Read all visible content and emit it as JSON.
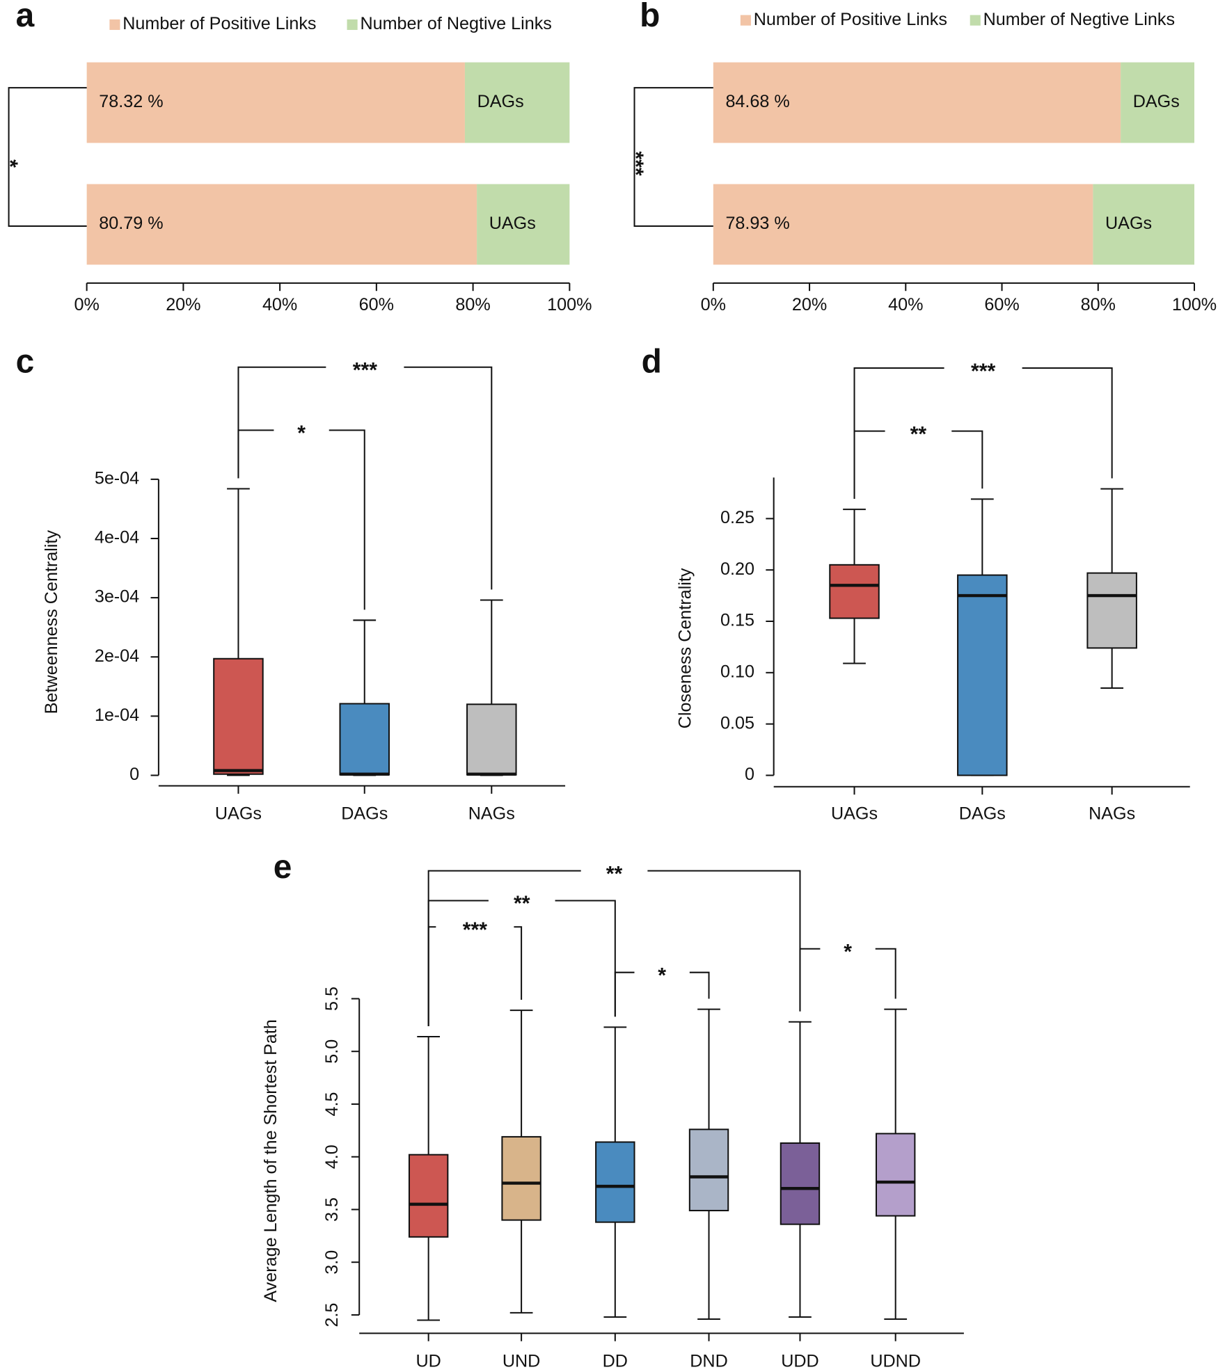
{
  "chart_data": [
    {
      "type": "stacked_hbar",
      "panel": "a",
      "categories": [
        "DAGs",
        "UAGs"
      ],
      "series": [
        {
          "name": "Number of Positive Links",
          "color": "#f2c4a6",
          "values": [
            78.32,
            80.79
          ],
          "value_labels": [
            "78.32 %",
            "80.79 %"
          ]
        },
        {
          "name": "Number of Negtive Links",
          "color": "#c1dcab",
          "values": [
            21.68,
            19.21
          ]
        }
      ],
      "xlim": [
        0,
        100
      ],
      "xticks": [
        {
          "value": 0,
          "label": "0%"
        },
        {
          "value": 20,
          "label": "20%"
        },
        {
          "value": 40,
          "label": "40%"
        },
        {
          "value": 60,
          "label": "60%"
        },
        {
          "value": 80,
          "label": "80%"
        },
        {
          "value": 100,
          "label": "100%"
        }
      ],
      "significance": "*"
    },
    {
      "type": "stacked_hbar",
      "panel": "b",
      "categories": [
        "DAGs",
        "UAGs"
      ],
      "series": [
        {
          "name": "Number of Positive Links",
          "color": "#f2c4a6",
          "values": [
            84.68,
            78.93
          ],
          "value_labels": [
            "84.68 %",
            "78.93 %"
          ]
        },
        {
          "name": "Number of Negtive Links",
          "color": "#c1dcab",
          "values": [
            15.32,
            21.07
          ]
        }
      ],
      "xlim": [
        0,
        100
      ],
      "xticks": [
        {
          "value": 0,
          "label": "0%"
        },
        {
          "value": 20,
          "label": "20%"
        },
        {
          "value": 40,
          "label": "40%"
        },
        {
          "value": 60,
          "label": "60%"
        },
        {
          "value": 80,
          "label": "80%"
        },
        {
          "value": 100,
          "label": "100%"
        }
      ],
      "significance": "***"
    },
    {
      "type": "box",
      "panel": "c",
      "ylabel": "Betweenness Centrality",
      "categories": [
        "UAGs",
        "DAGs",
        "NAGs"
      ],
      "colors": [
        "#cd5752",
        "#4a8bbf",
        "#bebebe"
      ],
      "boxes": [
        {
          "min": 0,
          "q1": 2e-06,
          "median": 8e-06,
          "q3": 0.000197,
          "max": 0.000484
        },
        {
          "min": 0,
          "q1": 1e-06,
          "median": 2e-06,
          "q3": 0.000121,
          "max": 0.000262
        },
        {
          "min": 0,
          "q1": 1e-06,
          "median": 2e-06,
          "q3": 0.00012,
          "max": 0.000296
        }
      ],
      "ylim": [
        0,
        0.0005
      ],
      "yticks": [
        0,
        {
          "value": 0.0001,
          "label": "1e-04"
        },
        {
          "value": 0.0002,
          "label": "2e-04"
        },
        {
          "value": 0.0003,
          "label": "3e-04"
        },
        {
          "value": 0.0004,
          "label": "4e-04"
        },
        {
          "value": 0.0005,
          "label": "5e-04"
        }
      ],
      "comparisons": [
        {
          "groups": [
            "UAGs",
            "NAGs"
          ],
          "label": "***"
        },
        {
          "groups": [
            "UAGs",
            "DAGs"
          ],
          "label": "*"
        }
      ]
    },
    {
      "type": "box",
      "panel": "d",
      "ylabel": "Closeness Centrality",
      "categories": [
        "UAGs",
        "DAGs",
        "NAGs"
      ],
      "colors": [
        "#cd5752",
        "#4a8bbf",
        "#bebebe"
      ],
      "boxes": [
        {
          "min": 0.109,
          "q1": 0.153,
          "median": 0.185,
          "q3": 0.205,
          "max": 0.259
        },
        {
          "min": 0,
          "q1": 0,
          "median": 0.175,
          "q3": 0.195,
          "max": 0.269
        },
        {
          "min": 0.085,
          "q1": 0.124,
          "median": 0.175,
          "q3": 0.197,
          "max": 0.279
        }
      ],
      "ylim": [
        0,
        0.29
      ],
      "yticks": [
        0,
        0.05,
        {
          "value": 0.1,
          "label": "0.10"
        },
        0.15,
        {
          "value": 0.2,
          "label": "0.20"
        },
        0.25
      ],
      "comparisons": [
        {
          "groups": [
            "UAGs",
            "NAGs"
          ],
          "label": "***"
        },
        {
          "groups": [
            "UAGs",
            "DAGs"
          ],
          "label": "**"
        }
      ]
    },
    {
      "type": "box",
      "panel": "e",
      "ylabel": "Average Length of the Shortest Path",
      "categories": [
        "UD",
        "UND",
        "DD",
        "DND",
        "UDD",
        "UDND"
      ],
      "colors": [
        "#cd5752",
        "#d8b48a",
        "#4a8bbf",
        "#aab5c7",
        "#7b6098",
        "#b49fcb"
      ],
      "boxes": [
        {
          "min": 2.45,
          "q1": 3.24,
          "median": 3.55,
          "q3": 4.02,
          "max": 5.14
        },
        {
          "min": 2.52,
          "q1": 3.4,
          "median": 3.75,
          "q3": 4.19,
          "max": 5.39
        },
        {
          "min": 2.48,
          "q1": 3.38,
          "median": 3.72,
          "q3": 4.14,
          "max": 5.23
        },
        {
          "min": 2.46,
          "q1": 3.49,
          "median": 3.81,
          "q3": 4.26,
          "max": 5.4
        },
        {
          "min": 2.48,
          "q1": 3.36,
          "median": 3.7,
          "q3": 4.13,
          "max": 5.28
        },
        {
          "min": 2.46,
          "q1": 3.44,
          "median": 3.76,
          "q3": 4.22,
          "max": 5.4
        }
      ],
      "ylim": [
        2.5,
        5.5
      ],
      "yticks": [
        2.5,
        {
          "value": 3,
          "label": "3.0"
        },
        3.5,
        {
          "value": 4,
          "label": "4.0"
        },
        4.5,
        {
          "value": 5,
          "label": "5.0"
        },
        5.5
      ],
      "comparisons": [
        {
          "groups": [
            "UD",
            "UDD"
          ],
          "label": "**"
        },
        {
          "groups": [
            "UD",
            "DD"
          ],
          "label": "**"
        },
        {
          "groups": [
            "UD",
            "UND"
          ],
          "label": "***"
        },
        {
          "groups": [
            "DD",
            "DND"
          ],
          "label": "*"
        },
        {
          "groups": [
            "UDD",
            "UDND"
          ],
          "label": "*"
        }
      ]
    }
  ]
}
